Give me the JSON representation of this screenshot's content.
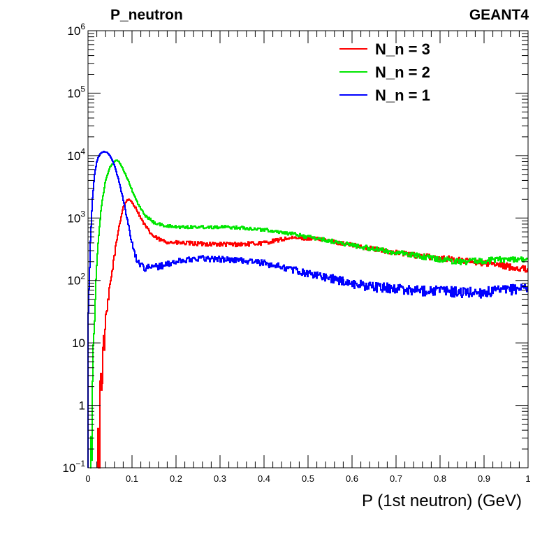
{
  "chart_data": {
    "type": "line",
    "title": "P_neutron",
    "label_top_right": "GEANT4",
    "xlabel": "P (1st neutron) (GeV)",
    "ylabel": "",
    "y_scale": "log",
    "xlim": [
      0,
      1
    ],
    "ylim": [
      0.1,
      1000000
    ],
    "x_ticks": [
      0,
      0.1,
      0.2,
      0.3,
      0.4,
      0.5,
      0.6,
      0.7,
      0.8,
      0.9,
      1
    ],
    "x_tick_labels": [
      "0",
      "0.1",
      "0.2",
      "0.3",
      "0.4",
      "0.5",
      "0.6",
      "0.7",
      "0.8",
      "0.9",
      "1"
    ],
    "y_ticks": [
      {
        "value": 0.1,
        "base": "10",
        "exp": "−1",
        "plain": ""
      },
      {
        "value": 1,
        "base": "",
        "exp": "",
        "plain": "1"
      },
      {
        "value": 10,
        "base": "",
        "exp": "",
        "plain": "10"
      },
      {
        "value": 100,
        "base": "10",
        "exp": "2",
        "plain": ""
      },
      {
        "value": 1000,
        "base": "10",
        "exp": "3",
        "plain": ""
      },
      {
        "value": 10000,
        "base": "10",
        "exp": "4",
        "plain": ""
      },
      {
        "value": 100000,
        "base": "10",
        "exp": "5",
        "plain": ""
      },
      {
        "value": 1000000,
        "base": "10",
        "exp": "6",
        "plain": ""
      }
    ],
    "legend_position": "top-right",
    "series": [
      {
        "name": "N_n = 3",
        "color": "#ff0000",
        "x": [
          0.022,
          0.025,
          0.03,
          0.035,
          0.04,
          0.05,
          0.06,
          0.07,
          0.08,
          0.09,
          0.1,
          0.11,
          0.12,
          0.13,
          0.14,
          0.15,
          0.17,
          0.2,
          0.25,
          0.3,
          0.35,
          0.4,
          0.45,
          0.5,
          0.55,
          0.6,
          0.65,
          0.7,
          0.75,
          0.8,
          0.85,
          0.9,
          0.95,
          1.0
        ],
        "y": [
          0.1,
          0.8,
          3,
          8,
          20,
          80,
          250,
          700,
          1500,
          2000,
          1800,
          1400,
          1000,
          750,
          600,
          500,
          430,
          400,
          390,
          380,
          380,
          400,
          470,
          480,
          430,
          370,
          320,
          280,
          250,
          230,
          210,
          190,
          170,
          150
        ]
      },
      {
        "name": "N_n = 2",
        "color": "#00e600",
        "x": [
          0.004,
          0.008,
          0.01,
          0.015,
          0.02,
          0.03,
          0.04,
          0.05,
          0.06,
          0.065,
          0.07,
          0.08,
          0.09,
          0.1,
          0.11,
          0.12,
          0.13,
          0.15,
          0.17,
          0.2,
          0.25,
          0.3,
          0.35,
          0.4,
          0.45,
          0.5,
          0.55,
          0.6,
          0.65,
          0.7,
          0.75,
          0.8,
          0.85,
          0.9,
          0.95,
          1.0
        ],
        "y": [
          0.1,
          1,
          3,
          30,
          200,
          1500,
          4000,
          6500,
          8000,
          8500,
          8000,
          6000,
          4200,
          2800,
          1900,
          1400,
          1100,
          850,
          760,
          720,
          720,
          720,
          700,
          650,
          580,
          500,
          430,
          370,
          320,
          280,
          250,
          220,
          200,
          210,
          220,
          220
        ]
      },
      {
        "name": "N_n = 1",
        "color": "#0000ff",
        "x": [
          0.0,
          0.003,
          0.006,
          0.01,
          0.015,
          0.02,
          0.025,
          0.03,
          0.035,
          0.04,
          0.045,
          0.05,
          0.06,
          0.07,
          0.08,
          0.09,
          0.1,
          0.11,
          0.12,
          0.13,
          0.15,
          0.18,
          0.2,
          0.25,
          0.3,
          0.35,
          0.4,
          0.45,
          0.5,
          0.55,
          0.6,
          0.65,
          0.7,
          0.75,
          0.8,
          0.85,
          0.9,
          0.95,
          1.0
        ],
        "y": [
          20,
          100,
          500,
          2000,
          5000,
          8000,
          10000,
          11000,
          11500,
          11500,
          11000,
          10000,
          7000,
          4000,
          2000,
          900,
          400,
          220,
          180,
          160,
          165,
          180,
          200,
          230,
          220,
          210,
          190,
          160,
          130,
          110,
          90,
          80,
          75,
          70,
          70,
          65,
          65,
          70,
          80
        ]
      }
    ]
  }
}
